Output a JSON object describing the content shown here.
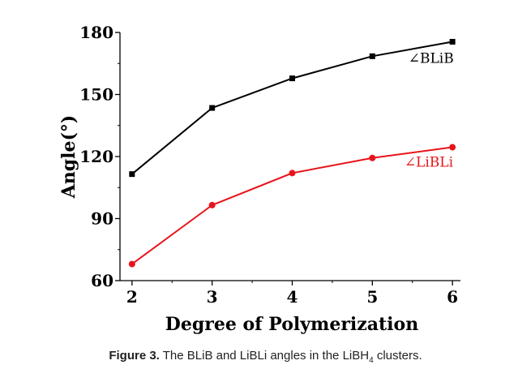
{
  "chart_data": {
    "type": "line",
    "xlabel": "Degree of Polymerization",
    "ylabel": "Angle(°)",
    "x": [
      2,
      3,
      4,
      5,
      6
    ],
    "xlim": [
      1.85,
      6.1
    ],
    "ylim": [
      60,
      180
    ],
    "yticks": [
      60,
      90,
      120,
      150,
      180
    ],
    "grid": false,
    "series": [
      {
        "name": "∠BLiB",
        "marker": "square",
        "color": "#000000",
        "values": [
          111.5,
          143.5,
          157.8,
          168.5,
          175.5
        ]
      },
      {
        "name": "∠LiBLi",
        "marker": "circle",
        "color": "#e8141c",
        "values": [
          68.0,
          96.5,
          112.0,
          119.3,
          124.5
        ]
      }
    ]
  },
  "caption": {
    "lead": "Figure 3.",
    "text": "The BLiB and LiBLi angles in the LiBH",
    "subscript": "4",
    "tail": "clusters."
  }
}
